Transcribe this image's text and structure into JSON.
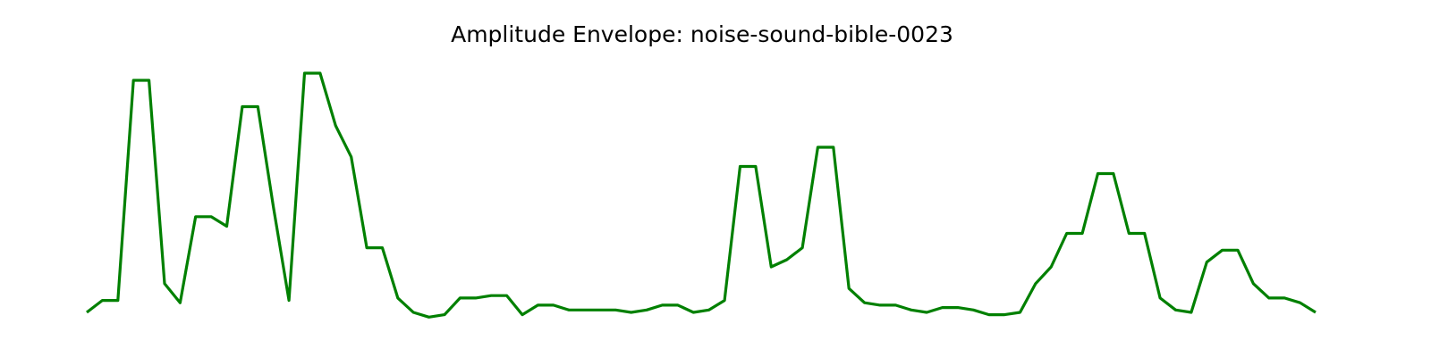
{
  "chart_data": {
    "type": "line",
    "title": "Amplitude Envelope: noise-sound-bible-0023",
    "xlabel": "",
    "ylabel": "",
    "grid": false,
    "axes_visible": false,
    "ylim": [
      0,
      1
    ],
    "series": [
      {
        "color": "#008000",
        "values": [
          0.03,
          0.08,
          0.08,
          1.0,
          1.0,
          0.15,
          0.07,
          0.43,
          0.43,
          0.39,
          0.89,
          0.89,
          0.47,
          0.08,
          1.03,
          1.03,
          0.81,
          0.68,
          0.3,
          0.3,
          0.09,
          0.03,
          0.01,
          0.02,
          0.09,
          0.09,
          0.1,
          0.1,
          0.02,
          0.06,
          0.06,
          0.04,
          0.04,
          0.04,
          0.04,
          0.03,
          0.04,
          0.06,
          0.06,
          0.03,
          0.04,
          0.08,
          0.64,
          0.64,
          0.22,
          0.25,
          0.3,
          0.72,
          0.72,
          0.13,
          0.07,
          0.06,
          0.06,
          0.04,
          0.03,
          0.05,
          0.05,
          0.04,
          0.02,
          0.02,
          0.03,
          0.15,
          0.22,
          0.36,
          0.36,
          0.61,
          0.61,
          0.36,
          0.36,
          0.09,
          0.04,
          0.03,
          0.24,
          0.29,
          0.29,
          0.15,
          0.09,
          0.09,
          0.07,
          0.03
        ]
      }
    ]
  }
}
